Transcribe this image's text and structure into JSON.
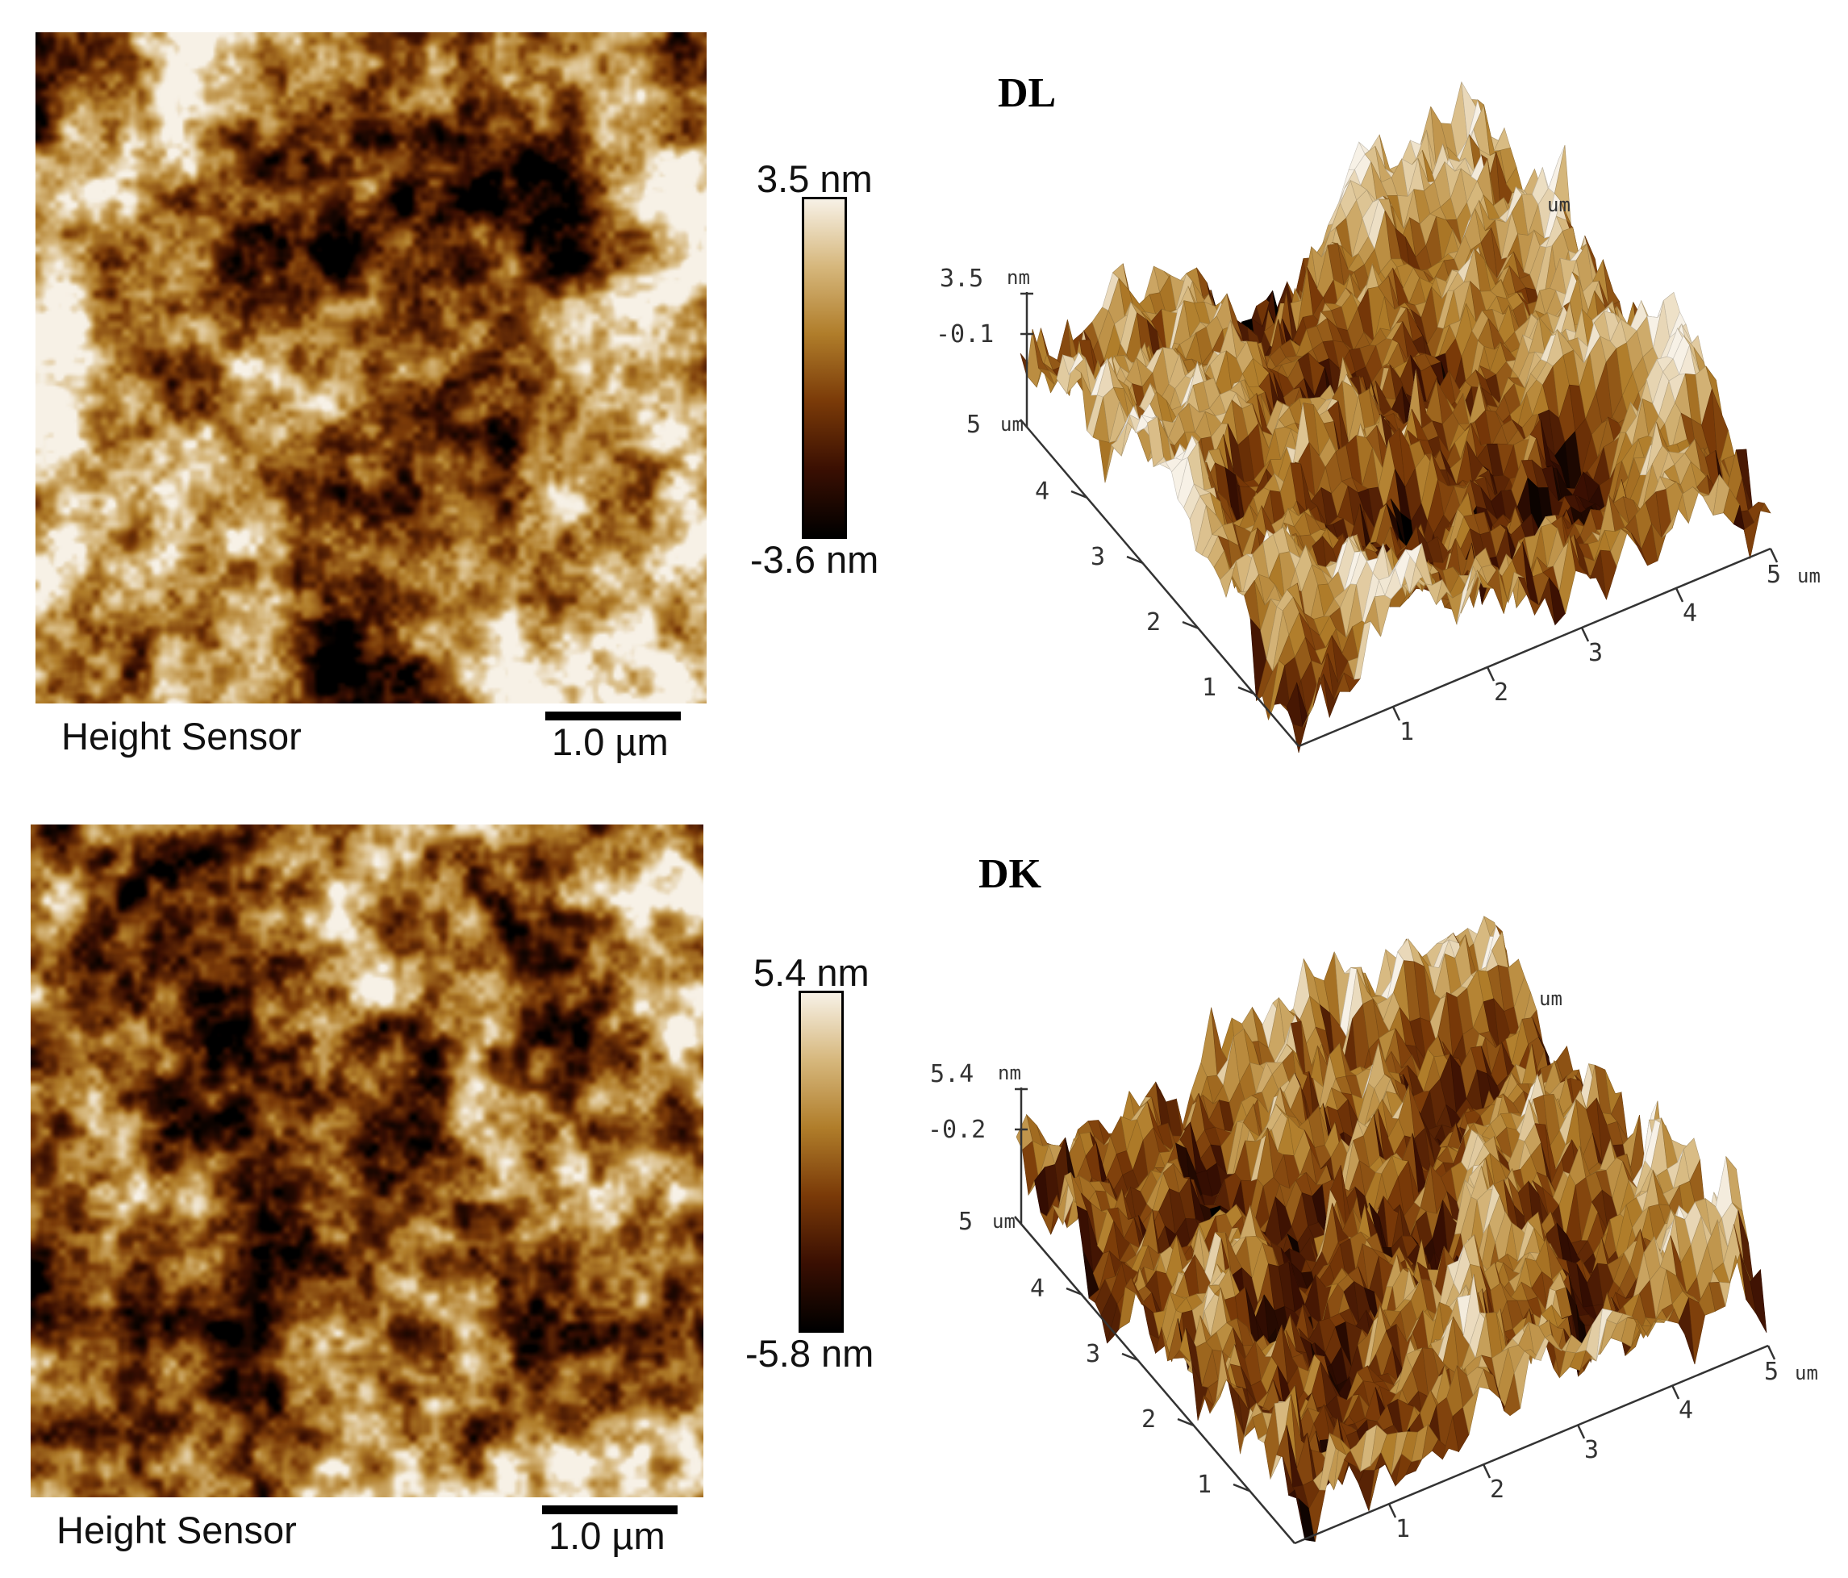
{
  "panels": [
    {
      "sample_label": "DL",
      "map_caption": "Height Sensor",
      "scale_bar_label": "1.0 µm",
      "colorbar": {
        "max_label": "3.5 nm",
        "min_label": "-3.6 nm"
      },
      "plot3d": {
        "z_max_label": "3.5",
        "z_max_unit": "nm",
        "z_mid_label": "-0.1",
        "y_axis_ticks": [
          "1",
          "2",
          "3",
          "4",
          "5"
        ],
        "y_axis_unit": "um",
        "x_axis_ticks": [
          "1",
          "2",
          "3",
          "4",
          "5"
        ],
        "x_axis_unit": "um",
        "back_corner_unit": "um"
      },
      "seed": 7,
      "roughness": 0.5
    },
    {
      "sample_label": "DK",
      "map_caption": "Height Sensor",
      "scale_bar_label": "1.0 µm",
      "colorbar": {
        "max_label": "5.4 nm",
        "min_label": "-5.8 nm"
      },
      "plot3d": {
        "z_max_label": "5.4",
        "z_max_unit": "nm",
        "z_mid_label": "-0.2",
        "y_axis_ticks": [
          "1",
          "2",
          "3",
          "4",
          "5"
        ],
        "y_axis_unit": "um",
        "x_axis_ticks": [
          "1",
          "2",
          "3",
          "4",
          "5"
        ],
        "x_axis_unit": "um",
        "back_corner_unit": "um"
      },
      "seed": 23,
      "roughness": 0.75
    }
  ],
  "colormap_stops": [
    "#000000",
    "#3a0f02",
    "#7a3a08",
    "#b07d2a",
    "#d6b77c",
    "#f7f1e6"
  ]
}
